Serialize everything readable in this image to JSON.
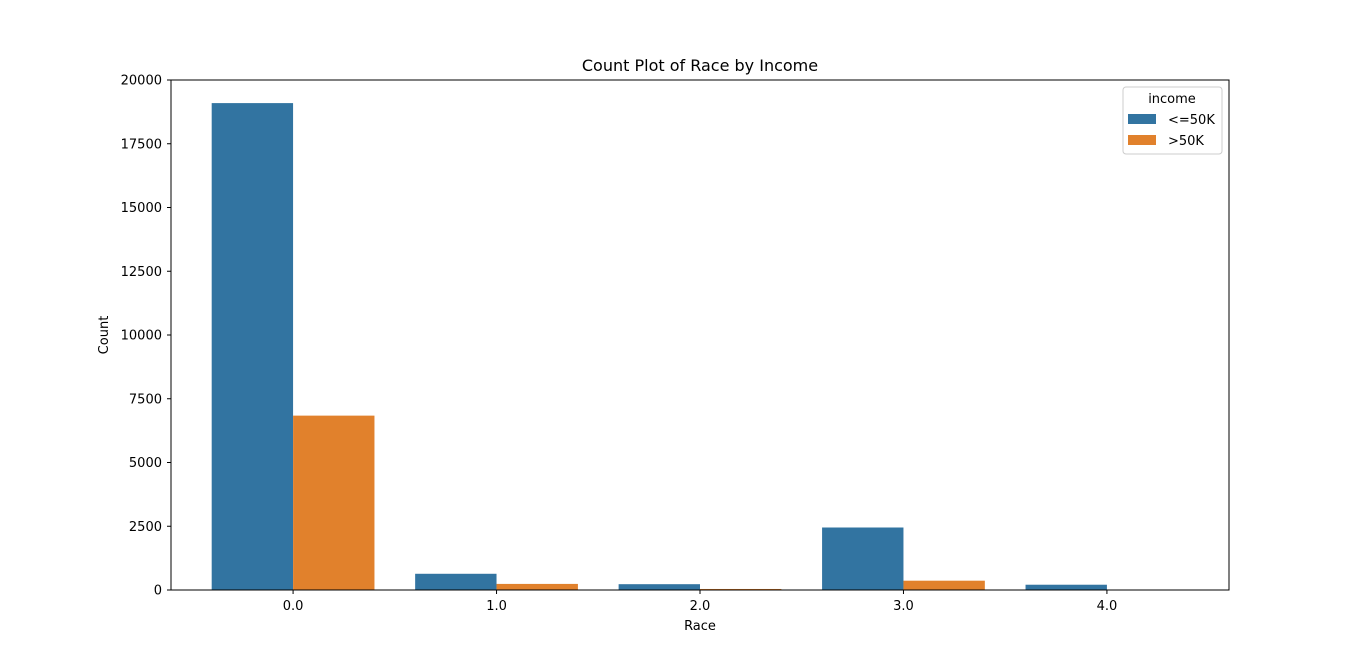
{
  "chart_data": {
    "type": "bar",
    "title": "Count Plot of Race by Income",
    "xlabel": "Race",
    "ylabel": "Count",
    "categories": [
      "0.0",
      "1.0",
      "2.0",
      "3.0",
      "4.0"
    ],
    "ylim": [
      0,
      20000
    ],
    "yticks": [
      0,
      2500,
      5000,
      7500,
      10000,
      12500,
      15000,
      17500,
      20000
    ],
    "grid": false,
    "legend": {
      "title": "income",
      "position": "top-right"
    },
    "series": [
      {
        "name": "<=50K",
        "color": "#3274a1",
        "values": [
          19094,
          636,
          228,
          2451,
          207
        ]
      },
      {
        "name": ">50K",
        "color": "#e1812c",
        "values": [
          6838,
          239,
          40,
          365,
          8
        ]
      }
    ]
  }
}
